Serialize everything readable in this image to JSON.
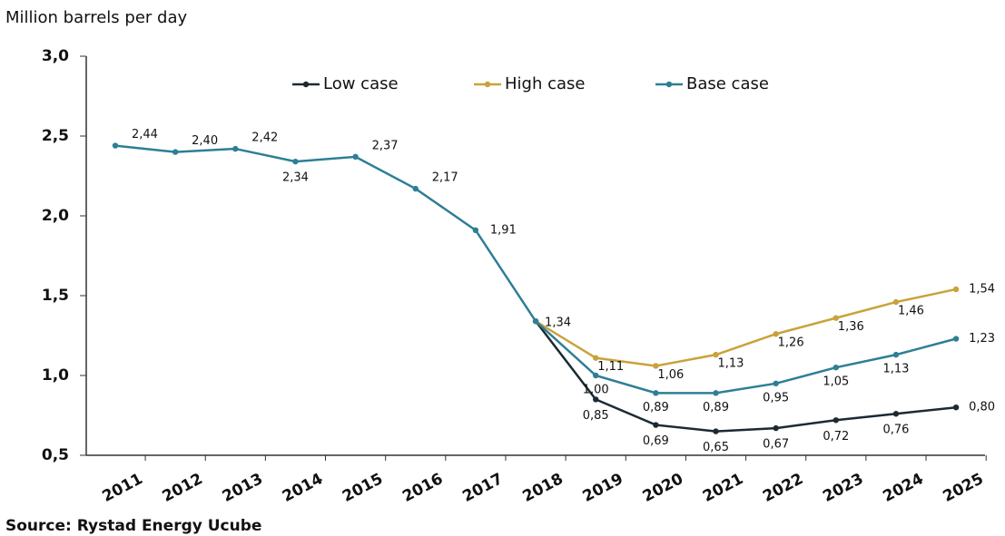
{
  "chart_data": {
    "type": "line",
    "y_axis_label": "Million barrels per day",
    "source": "Source: Rystad Energy Ucube",
    "categories": [
      "2011",
      "2012",
      "2013",
      "2014",
      "2015",
      "2016",
      "2017",
      "2018",
      "2019",
      "2020",
      "2021",
      "2022",
      "2023",
      "2024",
      "2025"
    ],
    "ylim": [
      0.5,
      3.0
    ],
    "yticks": [
      {
        "value": 0.5,
        "label": "0,5"
      },
      {
        "value": 1.0,
        "label": "1,0"
      },
      {
        "value": 1.5,
        "label": "1,5"
      },
      {
        "value": 2.0,
        "label": "2,0"
      },
      {
        "value": 2.5,
        "label": "2,5"
      },
      {
        "value": 3.0,
        "label": "3,0"
      }
    ],
    "legend": "top",
    "series": [
      {
        "name": "Low case",
        "color": "#1b2a33",
        "values": [
          null,
          null,
          null,
          null,
          null,
          null,
          null,
          1.34,
          0.85,
          0.69,
          0.65,
          0.67,
          0.72,
          0.76,
          0.8
        ],
        "value_labels": [
          null,
          null,
          null,
          null,
          null,
          null,
          null,
          null,
          "0,85",
          "0,69",
          "0,65",
          "0,67",
          "0,72",
          "0,76",
          "0,80"
        ]
      },
      {
        "name": "High case",
        "color": "#c9a23a",
        "values": [
          null,
          null,
          null,
          null,
          null,
          null,
          null,
          1.34,
          1.11,
          1.06,
          1.13,
          1.26,
          1.36,
          1.46,
          1.54
        ],
        "value_labels": [
          null,
          null,
          null,
          null,
          null,
          null,
          null,
          null,
          "1,11",
          "1,06",
          "1,13",
          "1,26",
          "1,36",
          "1,46",
          "1,54"
        ]
      },
      {
        "name": "Base case",
        "color": "#2d7f95",
        "values": [
          2.44,
          2.4,
          2.42,
          2.34,
          2.37,
          2.17,
          1.91,
          1.34,
          1.0,
          0.89,
          0.89,
          0.95,
          1.05,
          1.13,
          1.23
        ],
        "value_labels": [
          "2,44",
          "2,40",
          "2,42",
          "2,34",
          "2,37",
          "2,17",
          "1,91",
          "1,34",
          "1,00",
          "0,89",
          "0,89",
          "0,95",
          "1,05",
          "1,13",
          "1,23"
        ]
      }
    ]
  }
}
